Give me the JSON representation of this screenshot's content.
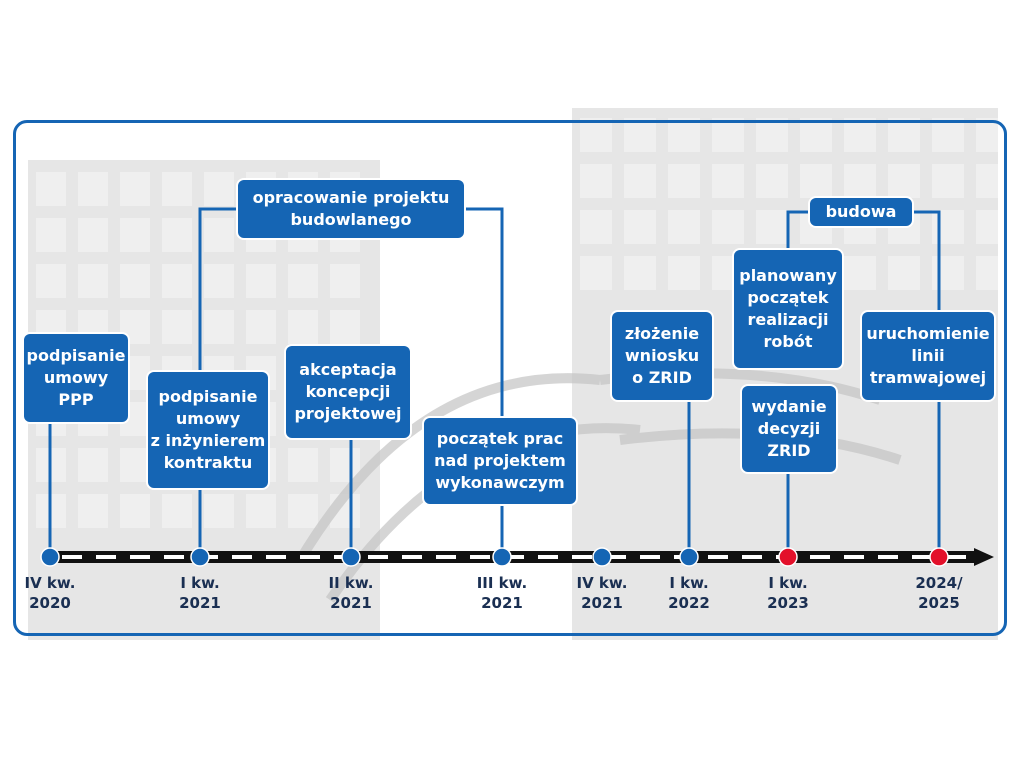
{
  "events": [
    {
      "id": "ppp",
      "text": "podpisanie\numowy\nPPP"
    },
    {
      "id": "engineer",
      "text": "podpisanie\numowy\nz inżynierem\nkontraktu"
    },
    {
      "id": "design",
      "text": "opracowanie projektu\nbudowlanego"
    },
    {
      "id": "concept",
      "text": "akceptacja\nkoncepcji\nprojektowej"
    },
    {
      "id": "exec",
      "text": "początek prac\nnad projektem\nwykonawczym"
    },
    {
      "id": "zrid-app",
      "text": "złożenie\nwniosku\no ZRID"
    },
    {
      "id": "construction",
      "text": "budowa"
    },
    {
      "id": "start",
      "text": "planowany\npoczątek\nrealizacji\nrobót"
    },
    {
      "id": "zrid",
      "text": "wydanie\ndecyzji\nZRID"
    },
    {
      "id": "launch",
      "text": "uruchomienie\nlinii\ntramwajowej"
    }
  ],
  "ticks": [
    {
      "text": "IV kw.\n2020",
      "marker": "blue"
    },
    {
      "text": "I kw.\n2021",
      "marker": "blue"
    },
    {
      "text": "II kw.\n2021",
      "marker": "blue"
    },
    {
      "text": "III kw.\n2021",
      "marker": "blue"
    },
    {
      "text": "IV kw.\n2021",
      "marker": "blue"
    },
    {
      "text": "I kw.\n2022",
      "marker": "blue"
    },
    {
      "text": "I kw.\n2023",
      "marker": "red"
    },
    {
      "text": "2024/\n2025",
      "marker": "red"
    }
  ],
  "colors": {
    "box": "#1565b4",
    "marker_blue": "#1565b4",
    "marker_red": "#e3102a",
    "axis": "#111111",
    "background_art": "#d2d2d2"
  }
}
